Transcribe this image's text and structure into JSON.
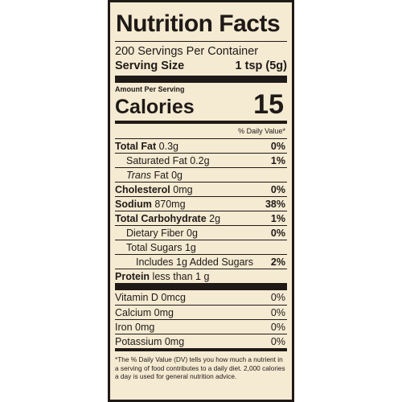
{
  "title": "Nutrition Facts",
  "servings_per_container": "200 Servings Per Container",
  "serving_size_label": "Serving Size",
  "serving_size_value": "1 tsp (5g)",
  "amount_per_serving": "Amount Per Serving",
  "calories_label": "Calories",
  "calories_value": "15",
  "daily_value_header": "% Daily Value*",
  "nutrients": {
    "total_fat": {
      "name": "Total Fat",
      "amount": "0.3g",
      "dv": "0%"
    },
    "saturated_fat": {
      "name": "Saturated Fat",
      "amount": "0.2g",
      "dv": "1%"
    },
    "trans_fat": {
      "name": "Trans",
      "suffix": "Fat",
      "amount": "0g"
    },
    "cholesterol": {
      "name": "Cholesterol",
      "amount": "0mg",
      "dv": "0%"
    },
    "sodium": {
      "name": "Sodium",
      "amount": "870mg",
      "dv": "38%"
    },
    "total_carbohydrate": {
      "name": "Total Carbohydrate",
      "amount": "2g",
      "dv": "1%"
    },
    "dietary_fiber": {
      "name": "Dietary Fiber",
      "amount": "0g",
      "dv": "0%"
    },
    "total_sugars": {
      "name": "Total Sugars",
      "amount": "1g"
    },
    "added_sugars": {
      "text": "Includes 1g Added Sugars",
      "dv": "2%"
    },
    "protein": {
      "name": "Protein",
      "amount": "less than 1 g"
    }
  },
  "vitamins": [
    {
      "text": "Vitamin D 0mcg",
      "dv": "0%"
    },
    {
      "text": "Calcium 0mg",
      "dv": "0%"
    },
    {
      "text": "Iron 0mg",
      "dv": "0%"
    },
    {
      "text": "Potassium 0mg",
      "dv": "0%"
    }
  ],
  "footnote": "*The % Daily Value (DV) tells you how much a nutrient in a serving of food contributes to a daily diet. 2,000 calories a day is used for general nutrition advice.",
  "colors": {
    "background": "#f5ead2",
    "ink": "#1f1a17"
  }
}
